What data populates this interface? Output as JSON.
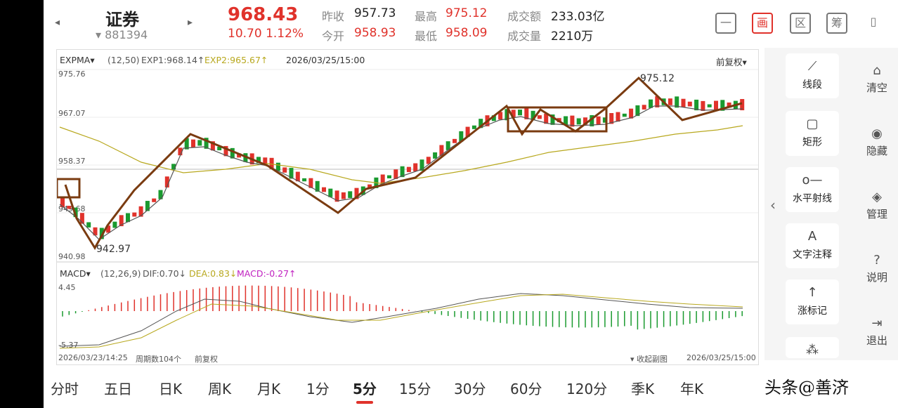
{
  "header": {
    "prev_icon": "left-triangle-icon",
    "next_icon": "right-triangle-icon",
    "title": "证券",
    "code": "▾ 881394",
    "price": "968.43",
    "change": "10.70  1.12%",
    "quotes": {
      "prev_close_label": "昨收",
      "prev_close": "957.73",
      "open_label": "今开",
      "open": "958.93",
      "high_label": "最高",
      "high": "975.12",
      "low_label": "最低",
      "low": "958.09",
      "amount_label": "成交额",
      "amount": "233.03亿",
      "volume_label": "成交量",
      "volume": "2210万"
    },
    "toolbar": [
      "一",
      "画",
      "区",
      "筹",
      "▯"
    ]
  },
  "main_indicator": {
    "name": "EXPMA▾",
    "params": "(12,50)",
    "exp1": "EXP1:968.14↑",
    "exp2": "EXP2:965.67↑",
    "datetime": "2026/03/25/15:00",
    "adjust": "前复权▾",
    "y_ticks": [
      "975.76",
      "967.07",
      "958.37",
      "949.68",
      "940.98"
    ],
    "high_mark": "975.12",
    "low_mark": "942.97"
  },
  "sub_indicator": {
    "name": "MACD▾",
    "params": "(12,26,9)",
    "dif": "DIF:0.70↓",
    "dea": "DEA:0.83↓",
    "macd": "MACD:-0.27↑",
    "y_top": "4.45",
    "y_bottom": "-5.37"
  },
  "footer": {
    "start": "2026/03/23/14:25",
    "periods": "周期数104个",
    "adjust": "前复权",
    "collapse": "▾ 收起副图",
    "end": "2026/03/25/15:00"
  },
  "tools": [
    {
      "icon": "line-segment-icon",
      "glyph": "⟋",
      "label": "线段"
    },
    {
      "icon": "rectangle-icon",
      "glyph": "▢",
      "label": "矩形"
    },
    {
      "icon": "horizontal-ray-icon",
      "glyph": "o—",
      "label": "水平射线"
    },
    {
      "icon": "text-note-icon",
      "glyph": "A",
      "label": "文字注释"
    },
    {
      "icon": "up-arrow-icon",
      "glyph": "↑",
      "label": "涨标记"
    }
  ],
  "side_actions": [
    {
      "icon": "clear-icon",
      "glyph": "⌂",
      "label": "清空"
    },
    {
      "icon": "eye-icon",
      "glyph": "◉",
      "label": "隐藏"
    },
    {
      "icon": "manage-icon",
      "glyph": "◈",
      "label": "管理"
    },
    {
      "icon": "help-icon",
      "glyph": "?",
      "label": "说明"
    },
    {
      "icon": "exit-icon",
      "glyph": "⇥",
      "label": "退出"
    }
  ],
  "tabs": [
    "分时",
    "五日",
    "日K",
    "周K",
    "月K",
    "1分",
    "5分",
    "15分",
    "30分",
    "60分",
    "120分",
    "季K",
    "年K"
  ],
  "active_tab": "5分",
  "watermark": "头条@善济",
  "colors": {
    "up": "#e0322b",
    "down": "#1a9a2f",
    "exp1": "#555555",
    "exp2": "#b8a81e",
    "trend": "#7a3b10"
  }
}
